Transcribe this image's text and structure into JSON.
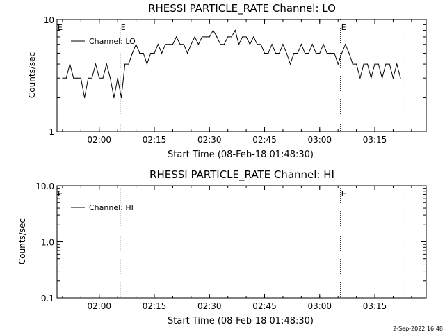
{
  "chart_data": [
    {
      "type": "line",
      "title": "RHESSI PARTICLE_RATE Channel: LO",
      "xlabel": "Start Time (08-Feb-18 01:48:30)",
      "ylabel": "Counts/sec",
      "yscale": "log",
      "ylim": [
        1,
        10
      ],
      "y_ticks": [
        "1",
        "10"
      ],
      "xlim": [
        "01:48:30",
        "03:29:00"
      ],
      "x_ticks": [
        "02:00",
        "02:15",
        "02:30",
        "02:45",
        "03:00",
        "03:15"
      ],
      "legend": {
        "label": "Channel: LO",
        "position": "top-left"
      },
      "event_markers": [
        {
          "time": "02:05:40",
          "label": "E"
        },
        {
          "time": "03:05:40",
          "label": "E"
        },
        {
          "time": "03:22:40",
          "label": ""
        }
      ],
      "edge_label_left": "E",
      "grid": false,
      "series": [
        {
          "name": "Channel: LO",
          "x": [
            "01:50:00",
            "01:51:00",
            "01:52:00",
            "01:53:00",
            "01:54:00",
            "01:55:00",
            "01:56:00",
            "01:57:00",
            "01:58:00",
            "01:59:00",
            "02:00:00",
            "02:01:00",
            "02:02:00",
            "02:03:00",
            "02:04:00",
            "02:05:00",
            "02:06:00",
            "02:07:00",
            "02:08:00",
            "02:09:00",
            "02:10:00",
            "02:11:00",
            "02:12:00",
            "02:13:00",
            "02:14:00",
            "02:15:00",
            "02:16:00",
            "02:17:00",
            "02:18:00",
            "02:19:00",
            "02:20:00",
            "02:21:00",
            "02:22:00",
            "02:23:00",
            "02:24:00",
            "02:25:00",
            "02:26:00",
            "02:27:00",
            "02:28:00",
            "02:29:00",
            "02:30:00",
            "02:31:00",
            "02:32:00",
            "02:33:00",
            "02:34:00",
            "02:35:00",
            "02:36:00",
            "02:37:00",
            "02:38:00",
            "02:39:00",
            "02:40:00",
            "02:41:00",
            "02:42:00",
            "02:43:00",
            "02:44:00",
            "02:45:00",
            "02:46:00",
            "02:47:00",
            "02:48:00",
            "02:49:00",
            "02:50:00",
            "02:51:00",
            "02:52:00",
            "02:53:00",
            "02:54:00",
            "02:55:00",
            "02:56:00",
            "02:57:00",
            "02:58:00",
            "02:59:00",
            "03:00:00",
            "03:01:00",
            "03:02:00",
            "03:03:00",
            "03:04:00",
            "03:05:00",
            "03:06:00",
            "03:07:00",
            "03:08:00",
            "03:09:00",
            "03:10:00",
            "03:11:00",
            "03:12:00",
            "03:13:00",
            "03:14:00",
            "03:15:00",
            "03:16:00",
            "03:17:00",
            "03:18:00",
            "03:19:00",
            "03:20:00",
            "03:21:00",
            "03:22:00"
          ],
          "values": [
            3,
            3,
            4,
            3,
            3,
            3,
            2,
            3,
            3,
            4,
            3,
            3,
            4,
            3,
            2,
            3,
            2,
            4,
            4,
            5,
            6,
            5,
            5,
            4,
            5,
            5,
            6,
            5,
            6,
            6,
            6,
            7,
            6,
            6,
            5,
            6,
            7,
            6,
            7,
            7,
            7,
            8,
            7,
            6,
            6,
            7,
            7,
            8,
            6,
            7,
            7,
            6,
            7,
            6,
            6,
            5,
            5,
            6,
            5,
            5,
            6,
            5,
            4,
            5,
            5,
            6,
            5,
            5,
            6,
            5,
            5,
            6,
            5,
            5,
            5,
            4,
            5,
            6,
            5,
            4,
            4,
            3,
            4,
            4,
            3,
            4,
            4,
            3,
            4,
            4,
            3,
            4,
            3
          ]
        }
      ]
    },
    {
      "type": "line",
      "title": "RHESSI PARTICLE_RATE Channel: HI",
      "xlabel": "Start Time (08-Feb-18 01:48:30)",
      "ylabel": "Counts/sec",
      "yscale": "log",
      "ylim": [
        0.1,
        10
      ],
      "y_ticks": [
        "0.1",
        "1.0",
        "10.0"
      ],
      "xlim": [
        "01:48:30",
        "03:29:00"
      ],
      "x_ticks": [
        "02:00",
        "02:15",
        "02:30",
        "02:45",
        "03:00",
        "03:15"
      ],
      "legend": {
        "label": "Channel: HI",
        "position": "top-left"
      },
      "event_markers": [
        {
          "time": "02:05:40",
          "label": ""
        },
        {
          "time": "03:05:40",
          "label": "E"
        },
        {
          "time": "03:22:40",
          "label": ""
        }
      ],
      "edge_label_left": "E",
      "grid": false,
      "series": [
        {
          "name": "Channel: HI",
          "x": [],
          "values": []
        }
      ]
    }
  ],
  "footer": {
    "timestamp": "2-Sep-2022 16:48"
  },
  "colors": {
    "background": "#ffffff",
    "ink": "#000000"
  }
}
